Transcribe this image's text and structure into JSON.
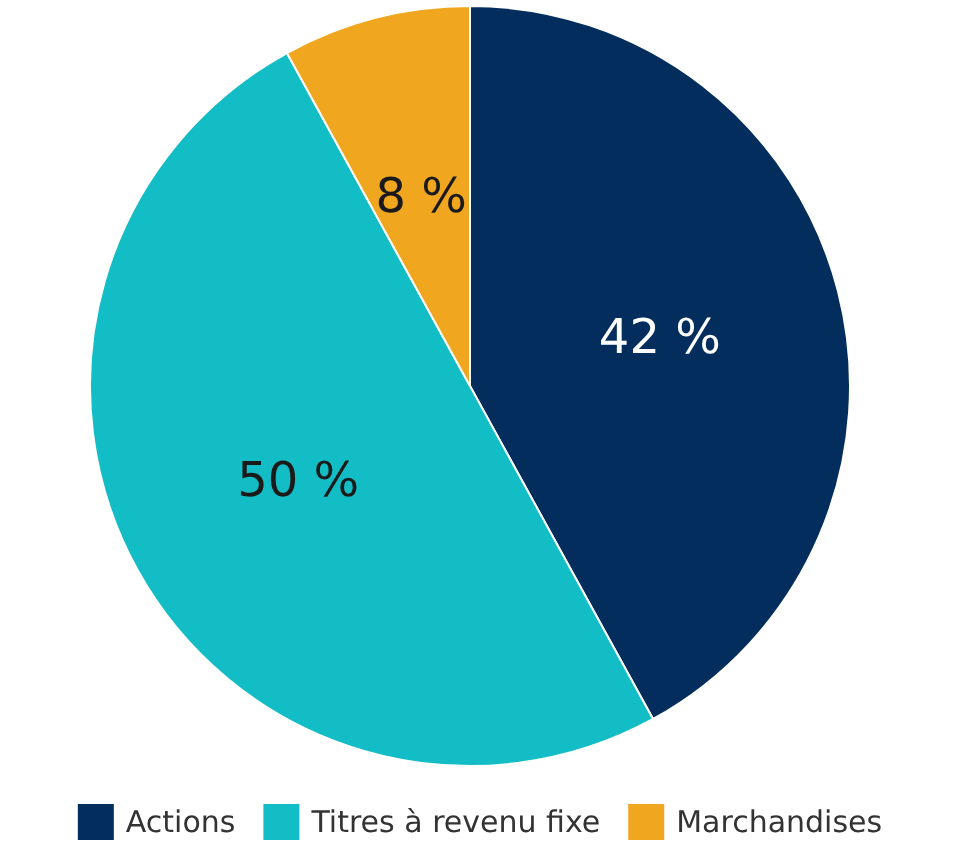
{
  "chart_data": {
    "type": "pie",
    "categories": [
      "Actions",
      "Titres à revenu fixe",
      "Marchandises"
    ],
    "values": [
      42,
      50,
      8
    ],
    "colors": [
      "#022d5c",
      "#13bdc6",
      "#f0a71f"
    ],
    "value_labels": [
      "42 %",
      "50 %",
      "8 %"
    ],
    "legend": "bottom"
  }
}
